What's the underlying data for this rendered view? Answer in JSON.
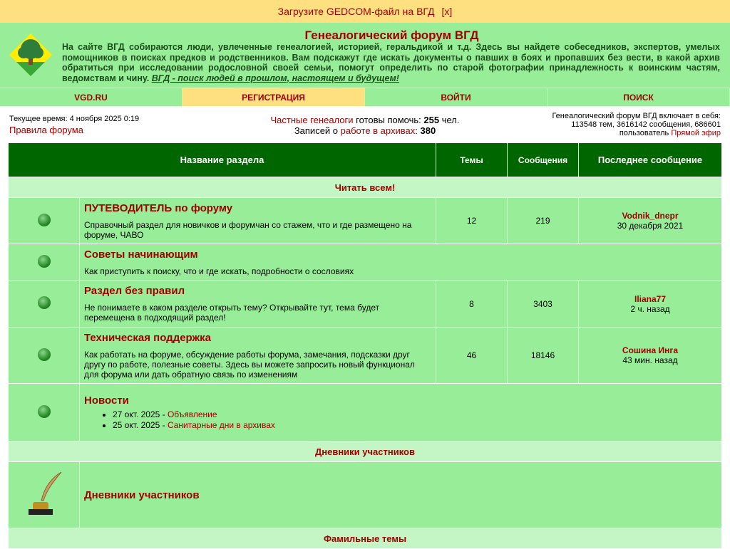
{
  "banner": {
    "text": "Загрузите GEDCOM-файл на ВГД",
    "close": "[x]"
  },
  "header": {
    "title": "Генеалогический форум ВГД",
    "description": "На сайте ВГД собираются люди, увлеченные генеалогией, историей, геральдикой и т.д. Здесь вы найдете собеседников, экспертов, умелых помощников в поисках предков и родственников. Вам подскажут где искать документы о павших в боях и пропавших без вести, в какой архив обратиться при исследовании родословной своей семьи, помогут определить по старой фотографии принадлежность к воинским частям, ведомствам и чину.",
    "slogan": "ВГД - поиск людей в прошлом, настоящем и будущем!"
  },
  "nav": [
    {
      "label": "VGD.RU"
    },
    {
      "label": "РЕГИСТРАЦИЯ"
    },
    {
      "label": "ВОЙТИ"
    },
    {
      "label": "ПОИСК"
    }
  ],
  "info": {
    "time": "Текущее время: 4 ноября 2025 0:19",
    "rules": "Правила форума",
    "genealogists_link": "Частные генеалоги",
    "genealogists_text": " готовы помочь: ",
    "genealogists_count": "255",
    "genealogists_unit": " чел.",
    "archives_prefix": "Записей о ",
    "archives_link": "работе в архивах",
    "archives_sep": ": ",
    "archives_count": "380",
    "stats_line1": "Генеалогический форум ВГД включает в себя:",
    "stats_line2": "113548 тем, 3616142 сообщения, 686601",
    "stats_line3": "пользователь ",
    "live_link": "Прямой эфир"
  },
  "table": {
    "headers": [
      "Название раздела",
      "Темы",
      "Сообщения",
      "Последнее сообщение"
    ],
    "cat1": "Читать всем!",
    "rows": [
      {
        "title": "ПУТЕВОДИТЕЛЬ по форуму",
        "desc": "Справочный раздел для новичков и форумчан со стажем, что и где размещено на форуме, ЧАВО",
        "topics": "12",
        "posts": "219",
        "last_user": "Vodnik_dnepr",
        "last_time": "30 декабря 2021"
      },
      {
        "title": "Советы начинающим",
        "desc": "Как приступить к поиску, что и где искать, подробности о сословиях"
      },
      {
        "title": "Раздел без правил",
        "desc": "Не понимаете в каком разделе открыть тему? Открывайте тут, тема будет перемещена в подходящий раздел!",
        "topics": "8",
        "posts": "3403",
        "last_user": "Iliana77",
        "last_time": "2 ч. назад"
      },
      {
        "title": "Техническая поддержка",
        "desc": "Как работать на форуме, обсуждение работы форума, замечания, подсказки друг другу по работе, полезные советы. Здесь вы можете запросить новый функционал для форума или дать обратную связь по изменениям",
        "topics": "46",
        "posts": "18146",
        "last_user": "Сошина Инга",
        "last_time": "43 мин. назад"
      }
    ],
    "news": {
      "title": "Новости",
      "items": [
        {
          "date": "27 окт. 2025 - ",
          "link": "Объявление"
        },
        {
          "date": "25 окт. 2025 - ",
          "link": "Санитарные дни в архивах"
        }
      ]
    },
    "cat2": "Дневники участников",
    "diaries": "Дневники участников",
    "cat3": "Фамильные темы"
  },
  "colors": {
    "accent": "#a00000",
    "header_green": "#006600",
    "row_green": "#98ee98",
    "banner": "#ffe080"
  }
}
